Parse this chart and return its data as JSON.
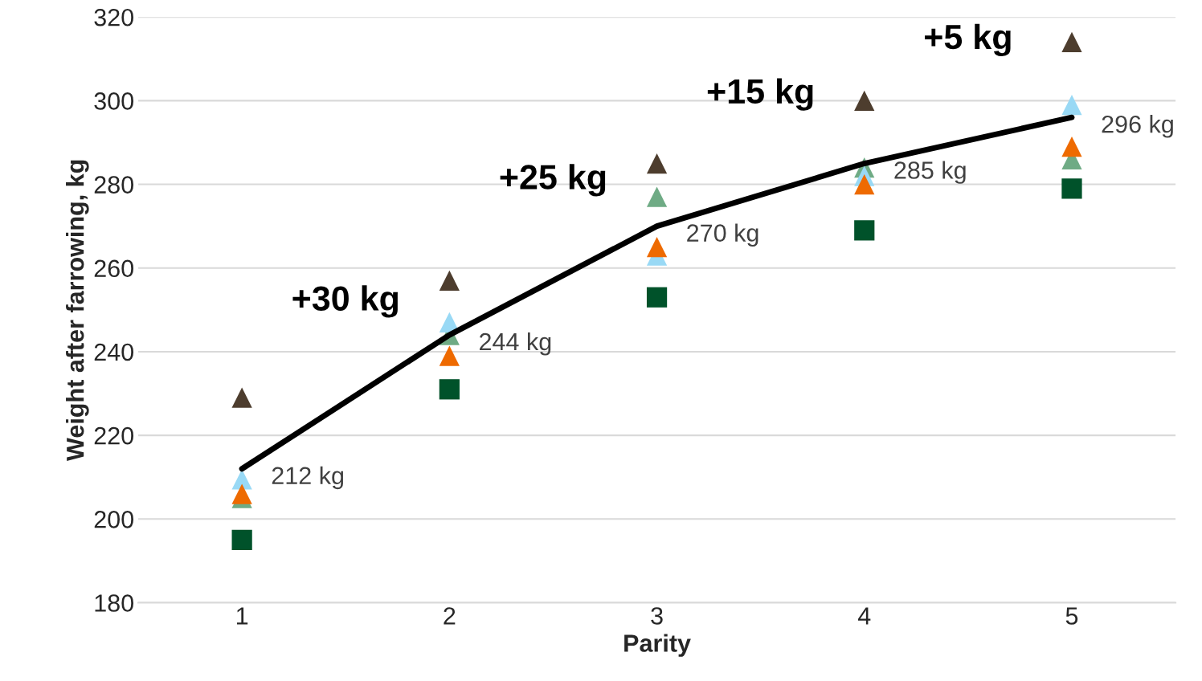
{
  "chart_data": {
    "type": "scatter",
    "xlabel": "Parity",
    "ylabel": "Weight after farrowing, kg",
    "categories": [
      "1",
      "2",
      "3",
      "4",
      "5"
    ],
    "ylim": [
      180,
      320
    ],
    "yticks": [
      180,
      200,
      220,
      240,
      260,
      280,
      300,
      320
    ],
    "grid": "y",
    "legend": false,
    "annotations": [
      "+30 kg",
      "+25 kg",
      "+15 kg",
      "+5 kg"
    ],
    "series": [
      {
        "color": "#4d3d2e",
        "marker": "triangle",
        "values": [
          229,
          257,
          285,
          300,
          314
        ]
      },
      {
        "color": "#6fab85",
        "marker": "triangle",
        "values": [
          205,
          244,
          277,
          284,
          286
        ]
      },
      {
        "color": "#99d9f5",
        "marker": "triangle",
        "values": [
          209.5,
          247,
          263,
          282,
          299
        ]
      },
      {
        "color": "#ee6a00",
        "marker": "triangle",
        "values": [
          206,
          239,
          265,
          280,
          289
        ]
      },
      {
        "color": "#00522a",
        "marker": "square",
        "values": [
          195,
          231,
          253,
          269,
          279
        ]
      },
      {
        "type": "line",
        "color": "#000000",
        "marker": "none",
        "line_style": "solid",
        "values": [
          212,
          244,
          270,
          285,
          296
        ],
        "value_labels": [
          "212 kg",
          "244 kg",
          "270 kg",
          "285 kg",
          "296 kg"
        ]
      }
    ]
  }
}
